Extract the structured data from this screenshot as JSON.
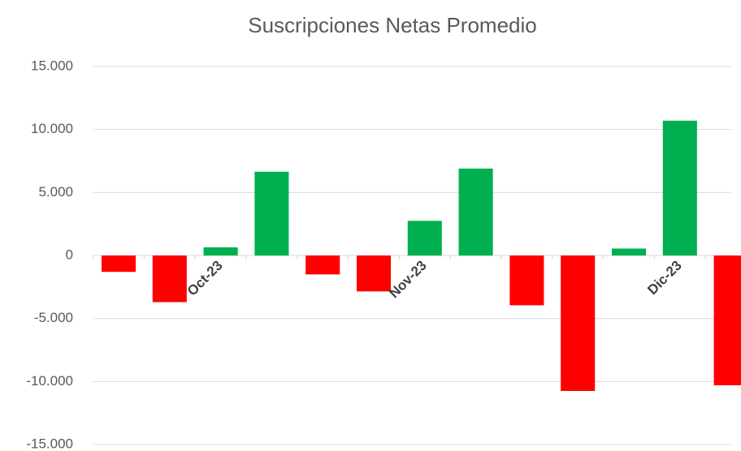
{
  "chart_data": {
    "type": "bar",
    "title": "Suscripciones Netas Promedio",
    "categories": [
      null,
      null,
      "Oct-23",
      null,
      null,
      null,
      "Nov-23",
      null,
      null,
      null,
      null,
      "Dic-23",
      null
    ],
    "values": [
      -1300,
      -3700,
      650,
      6650,
      -1500,
      -2850,
      2750,
      6900,
      -3950,
      -10750,
      550,
      10700,
      -10300
    ],
    "colors": [
      "#ff0000",
      "#ff0000",
      "#00b050",
      "#00b050",
      "#ff0000",
      "#ff0000",
      "#00b050",
      "#00b050",
      "#ff0000",
      "#ff0000",
      "#00b050",
      "#00b050",
      "#ff0000"
    ],
    "ylim": [
      -15000,
      15000
    ],
    "yticks": [
      {
        "value": -15000,
        "label": "-15.000"
      },
      {
        "value": -10000,
        "label": "-10.000"
      },
      {
        "value": -5000,
        "label": "-5.000"
      },
      0,
      {
        "value": 5000,
        "label": "5.000"
      },
      {
        "value": 10000,
        "label": "10.000"
      },
      {
        "value": 15000,
        "label": "15.000"
      }
    ],
    "grid": true
  }
}
